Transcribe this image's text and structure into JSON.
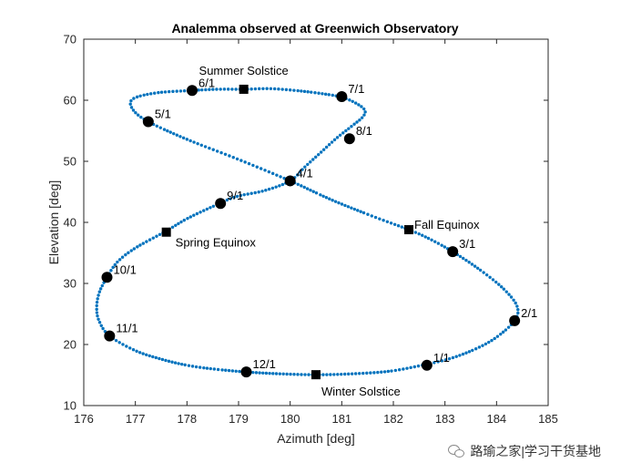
{
  "chart_data": {
    "type": "scatter",
    "title": "Analemma observed at Greenwich Observatory",
    "xlabel": "Azimuth [deg]",
    "ylabel": "Elevation [deg]",
    "xlim": [
      176,
      185
    ],
    "ylim": [
      10,
      70
    ],
    "xticks": [
      176,
      177,
      178,
      179,
      180,
      181,
      182,
      183,
      184,
      185
    ],
    "yticks": [
      10,
      20,
      30,
      40,
      50,
      60,
      70
    ],
    "grid": false,
    "series_color": "#0072BD",
    "marker_color": "#000000",
    "path_points": [
      [
        179.1,
        61.8
      ],
      [
        179.6,
        61.9
      ],
      [
        180.1,
        61.6
      ],
      [
        180.6,
        61.1
      ],
      [
        181.0,
        60.5
      ],
      [
        181.3,
        59.4
      ],
      [
        181.45,
        58.3
      ],
      [
        181.4,
        57.2
      ],
      [
        181.2,
        55.8
      ],
      [
        180.9,
        53.8
      ],
      [
        180.6,
        51.5
      ],
      [
        180.3,
        49.2
      ],
      [
        180.0,
        46.8
      ],
      [
        179.5,
        45.2
      ],
      [
        178.95,
        44.2
      ],
      [
        178.5,
        42.6
      ],
      [
        178.0,
        40.6
      ],
      [
        177.6,
        38.6
      ],
      [
        177.0,
        35.8
      ],
      [
        176.65,
        33.5
      ],
      [
        176.45,
        31.0
      ],
      [
        176.3,
        28.5
      ],
      [
        176.25,
        26.0
      ],
      [
        176.3,
        23.8
      ],
      [
        176.5,
        21.4
      ],
      [
        177.0,
        19.0
      ],
      [
        177.5,
        17.6
      ],
      [
        178.0,
        16.6
      ],
      [
        178.5,
        16.0
      ],
      [
        179.15,
        15.5
      ],
      [
        179.8,
        15.2
      ],
      [
        180.5,
        15.05
      ],
      [
        181.2,
        15.2
      ],
      [
        181.9,
        15.6
      ],
      [
        182.5,
        16.5
      ],
      [
        183.1,
        17.7
      ],
      [
        183.6,
        19.3
      ],
      [
        184.0,
        21.2
      ],
      [
        184.35,
        23.9
      ],
      [
        184.4,
        26.2
      ],
      [
        184.15,
        29.0
      ],
      [
        183.7,
        32.1
      ],
      [
        183.15,
        35.2
      ],
      [
        182.7,
        37.3
      ],
      [
        182.3,
        38.8
      ],
      [
        181.6,
        41.0
      ],
      [
        180.8,
        43.7
      ],
      [
        180.0,
        46.8
      ],
      [
        179.0,
        50.3
      ],
      [
        178.0,
        53.6
      ],
      [
        177.25,
        56.5
      ],
      [
        176.95,
        58.5
      ],
      [
        176.95,
        60.2
      ],
      [
        177.4,
        61.2
      ],
      [
        178.1,
        61.6
      ],
      [
        178.6,
        61.8
      ],
      [
        179.1,
        61.8
      ]
    ],
    "monthly_points": [
      {
        "label": "1/1",
        "x": 182.65,
        "y": 16.6
      },
      {
        "label": "2/1",
        "x": 184.35,
        "y": 23.9
      },
      {
        "label": "3/1",
        "x": 183.15,
        "y": 35.2
      },
      {
        "label": "4/1",
        "x": 180.0,
        "y": 46.8
      },
      {
        "label": "5/1",
        "x": 177.25,
        "y": 56.5
      },
      {
        "label": "6/1",
        "x": 178.1,
        "y": 61.6
      },
      {
        "label": "7/1",
        "x": 181.0,
        "y": 60.6
      },
      {
        "label": "8/1",
        "x": 181.15,
        "y": 53.7
      },
      {
        "label": "9/1",
        "x": 178.65,
        "y": 43.1
      },
      {
        "label": "10/1",
        "x": 176.45,
        "y": 31.0
      },
      {
        "label": "11/1",
        "x": 176.5,
        "y": 21.4
      },
      {
        "label": "12/1",
        "x": 179.15,
        "y": 15.5
      }
    ],
    "events": [
      {
        "label": "Summer Solstice",
        "x": 179.1,
        "y": 61.8
      },
      {
        "label": "Fall Equinox",
        "x": 182.3,
        "y": 38.8
      },
      {
        "label": "Spring Equinox",
        "x": 177.6,
        "y": 38.4
      },
      {
        "label": "Winter Solstice",
        "x": 180.5,
        "y": 15.05
      }
    ]
  },
  "watermark": {
    "text": "路瑜之家|学习干货基地"
  }
}
